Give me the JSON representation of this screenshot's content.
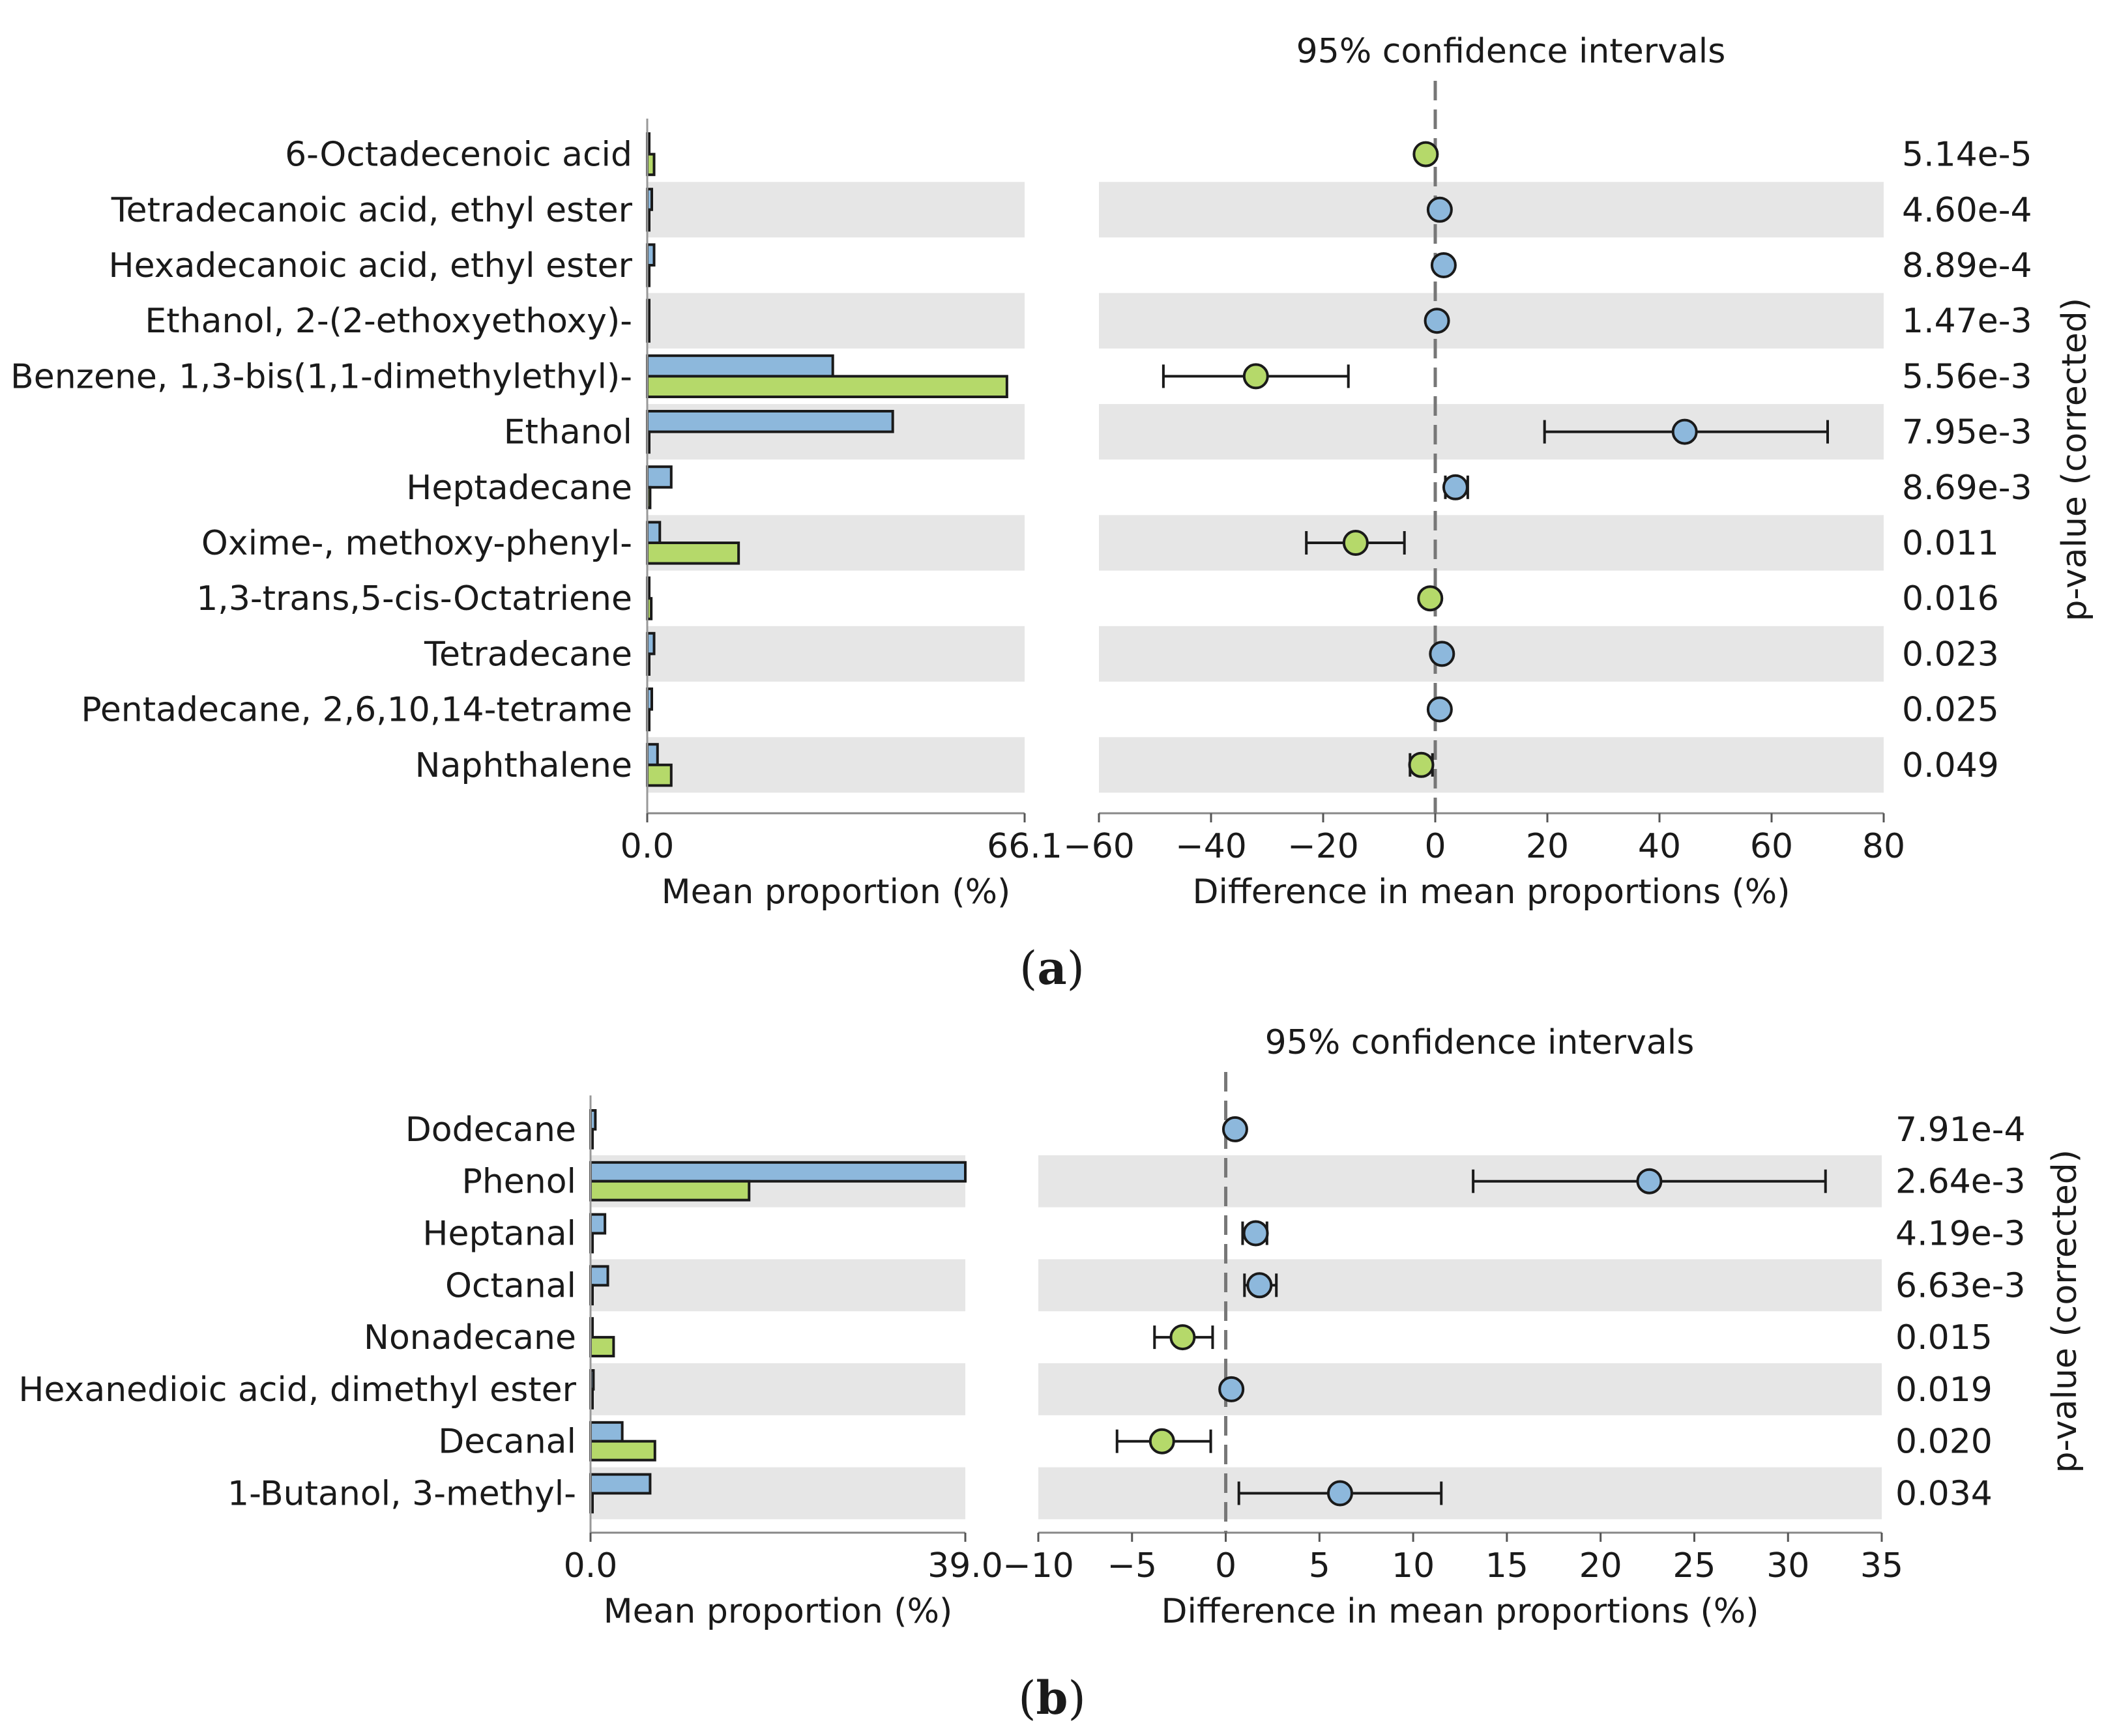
{
  "colors": {
    "group1": "#8db8dc",
    "group2": "#b5d96a",
    "stripe": "#e6e6e6",
    "stroke": "#1a1a1a",
    "zero_line": "#777777"
  },
  "chart_data": [
    {
      "type": "bar",
      "panel_label_open": "(",
      "panel_label_letter": "a",
      "panel_label_close": ")",
      "ci_title": "95% confidence intervals",
      "bar_xlabel": "Mean proportion (%)",
      "ci_xlabel": "Difference in mean proportions (%)",
      "pvalue_label": "p-value (corrected)",
      "bar_xlim": [
        0,
        66.1
      ],
      "bar_tick_labels": [
        "0.0",
        "66.1"
      ],
      "ci_xlim": [
        -60,
        80
      ],
      "ci_ticks": [
        -60,
        -40,
        -20,
        0,
        20,
        40,
        60,
        80
      ],
      "ci_tick_labels": [
        "−60",
        "−40",
        "−20",
        "0",
        "20",
        "40",
        "60",
        "80"
      ],
      "categories": [
        "6-Octadecenoic acid",
        "Tetradecanoic acid, ethyl ester",
        "Hexadecanoic acid, ethyl ester",
        "Ethanol, 2-(2-ethoxyethoxy)-",
        "Benzene, 1,3-bis(1,1-dimethylethyl)-",
        "Ethanol",
        "Heptadecane",
        "Oxime-, methoxy-phenyl-",
        "1,3-trans,5-cis-Octatriene",
        "Tetradecane",
        "Pentadecane, 2,6,10,14-tetrame",
        "Naphthalene"
      ],
      "series": [
        {
          "values": [
            0.0,
            0.8,
            1.2,
            0.3,
            32.5,
            43.0,
            4.2,
            2.2,
            0.0,
            1.2,
            0.8,
            1.8
          ]
        },
        {
          "values": [
            1.2,
            0.0,
            0.0,
            0.0,
            63.0,
            0.0,
            0.5,
            16.0,
            0.7,
            0.0,
            0.0,
            4.2
          ]
        }
      ],
      "difference": [
        -1.7,
        0.8,
        1.5,
        0.3,
        -32.0,
        44.5,
        3.6,
        -14.2,
        -0.9,
        1.2,
        0.8,
        -2.5
      ],
      "ci_low": [
        null,
        null,
        null,
        null,
        -48.5,
        19.5,
        1.8,
        -23.0,
        null,
        null,
        null,
        -4.5
      ],
      "ci_high": [
        null,
        null,
        null,
        null,
        -15.5,
        70.0,
        5.8,
        -5.5,
        null,
        null,
        null,
        -0.5
      ],
      "marker_series": [
        2,
        1,
        1,
        1,
        2,
        1,
        1,
        2,
        2,
        1,
        1,
        2
      ],
      "p_values": [
        "5.14e-5",
        "4.60e-4",
        "8.89e-4",
        "1.47e-3",
        "5.56e-3",
        "7.95e-3",
        "8.69e-3",
        "0.011",
        "0.016",
        "0.023",
        "0.025",
        "0.049"
      ]
    },
    {
      "type": "bar",
      "panel_label_open": "(",
      "panel_label_letter": "b",
      "panel_label_close": ")",
      "ci_title": "95% confidence intervals",
      "bar_xlabel": "Mean proportion (%)",
      "ci_xlabel": "Difference in mean proportions (%)",
      "pvalue_label": "p-value (corrected)",
      "bar_xlim": [
        0,
        39.0
      ],
      "bar_tick_labels": [
        "0.0",
        "39.0"
      ],
      "ci_xlim": [
        -10,
        35
      ],
      "ci_ticks": [
        -10,
        -5,
        0,
        5,
        10,
        15,
        20,
        25,
        30,
        35
      ],
      "ci_tick_labels": [
        "−10",
        "−5",
        "0",
        "5",
        "10",
        "15",
        "20",
        "25",
        "30",
        "35"
      ],
      "categories": [
        "Dodecane",
        "Phenol",
        "Heptanal",
        "Octanal",
        "Nonadecane",
        "Hexanedioic acid, dimethyl ester",
        "Decanal",
        "1-Butanol, 3-methyl-"
      ],
      "series": [
        {
          "values": [
            0.5,
            39.0,
            1.5,
            1.8,
            0.0,
            0.3,
            3.3,
            6.2
          ]
        },
        {
          "values": [
            0.0,
            16.5,
            0.0,
            0.0,
            2.4,
            0.0,
            6.7,
            0.0
          ]
        }
      ],
      "difference": [
        0.5,
        22.6,
        1.6,
        1.8,
        -2.3,
        0.3,
        -3.4,
        6.1
      ],
      "ci_low": [
        null,
        13.2,
        0.9,
        1.0,
        -3.8,
        null,
        -5.8,
        0.7
      ],
      "ci_high": [
        null,
        32.0,
        2.2,
        2.7,
        -0.7,
        null,
        -0.8,
        11.5
      ],
      "marker_series": [
        1,
        1,
        1,
        1,
        2,
        1,
        2,
        1
      ],
      "p_values": [
        "7.91e-4",
        "2.64e-3",
        "4.19e-3",
        "6.63e-3",
        "0.015",
        "0.019",
        "0.020",
        "0.034"
      ]
    }
  ]
}
